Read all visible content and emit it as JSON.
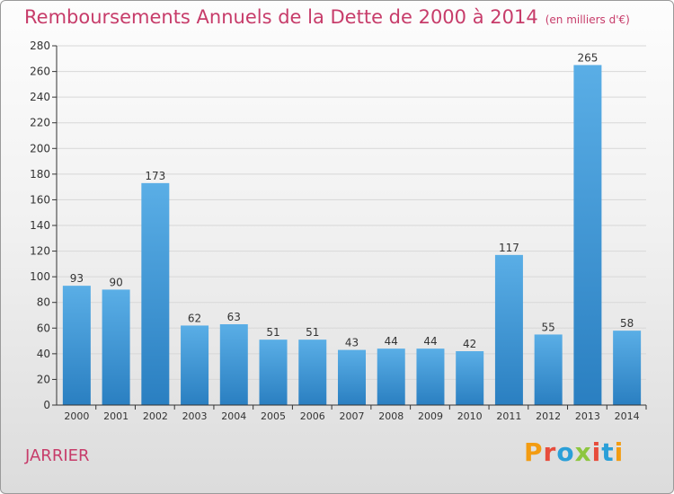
{
  "header": {
    "title": "Remboursements Annuels de la Dette de 2000 à 2014",
    "subtitle": "(en milliers d'€)"
  },
  "footer": {
    "commune": "JARRIER",
    "logo_text": "Proxiti",
    "logo_colors": [
      "#f39c12",
      "#e74c3c",
      "#2a9fd8",
      "#8dc63f",
      "#e74c3c",
      "#2a9fd8",
      "#f39c12"
    ]
  },
  "colors": {
    "bar_light": "#5aaee6",
    "bar_dark": "#2a7fc1",
    "axis": "#333333",
    "grid": "#d7d7d7",
    "title": "#c73c6a"
  },
  "chart_data": {
    "type": "bar",
    "categories": [
      "2000",
      "2001",
      "2002",
      "2003",
      "2004",
      "2005",
      "2006",
      "2007",
      "2008",
      "2009",
      "2010",
      "2011",
      "2012",
      "2013",
      "2014"
    ],
    "values": [
      93,
      90,
      173,
      62,
      63,
      51,
      51,
      43,
      44,
      44,
      42,
      117,
      55,
      265,
      58
    ],
    "ylim": [
      0,
      280
    ],
    "yticks": [
      0,
      20,
      40,
      60,
      80,
      100,
      120,
      140,
      160,
      180,
      200,
      220,
      240,
      260,
      280
    ],
    "grid": true,
    "data_labels": true
  }
}
